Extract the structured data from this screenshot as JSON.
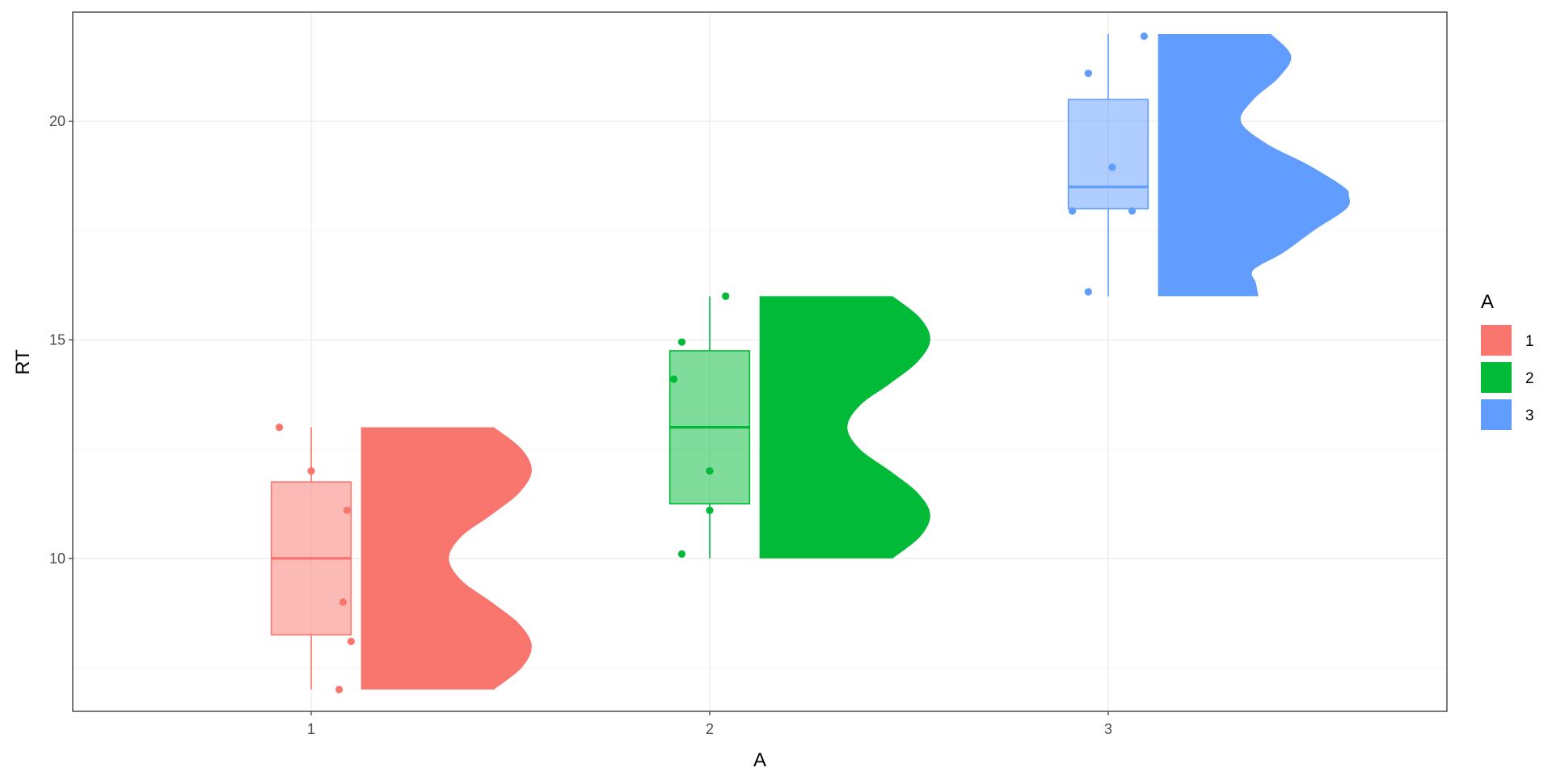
{
  "chart_data": {
    "type": "raincloud",
    "title": "",
    "xlabel": "A",
    "ylabel": "RT",
    "categories": [
      "1",
      "2",
      "3"
    ],
    "ylim": [
      6.5,
      22.5
    ],
    "yticks": [
      10,
      15,
      20
    ],
    "grid": true,
    "legend": {
      "title": "A",
      "position": "right",
      "items": [
        {
          "label": "1",
          "color": "#F8766D"
        },
        {
          "label": "2",
          "color": "#00BA38"
        },
        {
          "label": "3",
          "color": "#619CFF"
        }
      ]
    },
    "groups": [
      {
        "category": "1",
        "color": "#F8766D",
        "points": [
          {
            "x": 0.92,
            "y": 13
          },
          {
            "x": 1.0,
            "y": 12
          },
          {
            "x": 1.09,
            "y": 11.1
          },
          {
            "x": 1.08,
            "y": 9
          },
          {
            "x": 1.1,
            "y": 8.1
          },
          {
            "x": 1.07,
            "y": 7
          }
        ],
        "box": {
          "min": 7,
          "q1": 8.25,
          "median": 10,
          "q3": 11.75,
          "max": 13
        },
        "density": {
          "ymin": 7,
          "ymax": 13,
          "curve": [
            [
              7,
              0.53
            ],
            [
              7.5,
              0.64
            ],
            [
              8,
              0.68
            ],
            [
              8.5,
              0.63
            ],
            [
              9,
              0.52
            ],
            [
              9.5,
              0.4
            ],
            [
              10,
              0.35
            ],
            [
              10.5,
              0.4
            ],
            [
              11,
              0.52
            ],
            [
              11.5,
              0.63
            ],
            [
              12,
              0.68
            ],
            [
              12.5,
              0.64
            ],
            [
              13,
              0.53
            ]
          ]
        }
      },
      {
        "category": "2",
        "color": "#00BA38",
        "points": [
          {
            "x": 1.93,
            "y": 10.1
          },
          {
            "x": 2.0,
            "y": 11.1
          },
          {
            "x": 2.0,
            "y": 12
          },
          {
            "x": 1.91,
            "y": 14.1
          },
          {
            "x": 1.93,
            "y": 14.95
          },
          {
            "x": 2.04,
            "y": 16
          }
        ],
        "box": {
          "min": 10,
          "q1": 11.25,
          "median": 13,
          "q3": 14.75,
          "max": 16
        },
        "density": {
          "ymin": 10,
          "ymax": 16,
          "curve": [
            [
              10,
              0.53
            ],
            [
              10.5,
              0.64
            ],
            [
              11,
              0.68
            ],
            [
              11.5,
              0.63
            ],
            [
              12,
              0.52
            ],
            [
              12.5,
              0.4
            ],
            [
              13,
              0.35
            ],
            [
              13.5,
              0.4
            ],
            [
              14,
              0.52
            ],
            [
              14.5,
              0.63
            ],
            [
              15,
              0.68
            ],
            [
              15.5,
              0.64
            ],
            [
              16,
              0.53
            ]
          ]
        }
      },
      {
        "category": "3",
        "color": "#619CFF",
        "points": [
          {
            "x": 2.95,
            "y": 16.1
          },
          {
            "x": 2.91,
            "y": 17.95
          },
          {
            "x": 3.06,
            "y": 17.95
          },
          {
            "x": 3.01,
            "y": 18.95
          },
          {
            "x": 2.95,
            "y": 21.1
          },
          {
            "x": 3.09,
            "y": 21.95
          }
        ],
        "box": {
          "min": 16,
          "q1": 18,
          "median": 18.5,
          "q3": 20.5,
          "max": 22
        },
        "density": {
          "ymin": 16,
          "ymax": 22,
          "curve": [
            [
              16,
              0.4
            ],
            [
              16.3,
              0.39
            ],
            [
              16.6,
              0.38
            ],
            [
              17,
              0.5
            ],
            [
              17.5,
              0.62
            ],
            [
              18,
              0.75
            ],
            [
              18.3,
              0.76
            ],
            [
              18.5,
              0.74
            ],
            [
              19,
              0.6
            ],
            [
              19.5,
              0.43
            ],
            [
              20,
              0.33
            ],
            [
              20.5,
              0.38
            ],
            [
              21,
              0.48
            ],
            [
              21.5,
              0.53
            ],
            [
              22,
              0.45
            ]
          ]
        }
      }
    ]
  }
}
